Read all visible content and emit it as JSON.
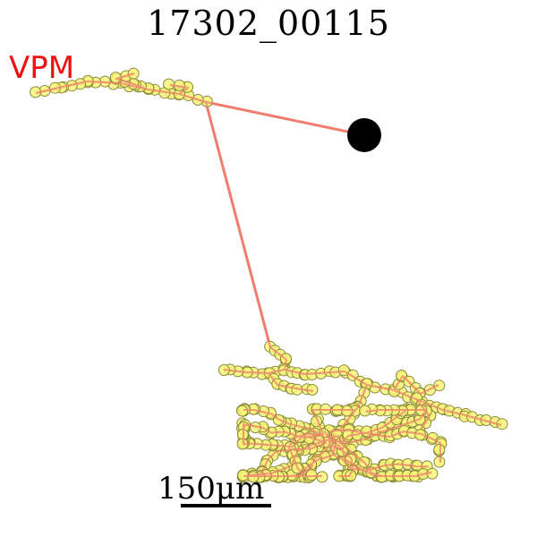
{
  "figure": {
    "title": "17302_00115",
    "region_label": "VPM",
    "scale_bar_label": "150μm"
  },
  "colors": {
    "background": "#ffffff",
    "axon": "#f07d6e",
    "bouton_fill": "#f8f47a",
    "bouton_edge": "#8a8a3a",
    "soma": "#000000",
    "region_label": "#ee1111",
    "text": "#000000"
  }
}
